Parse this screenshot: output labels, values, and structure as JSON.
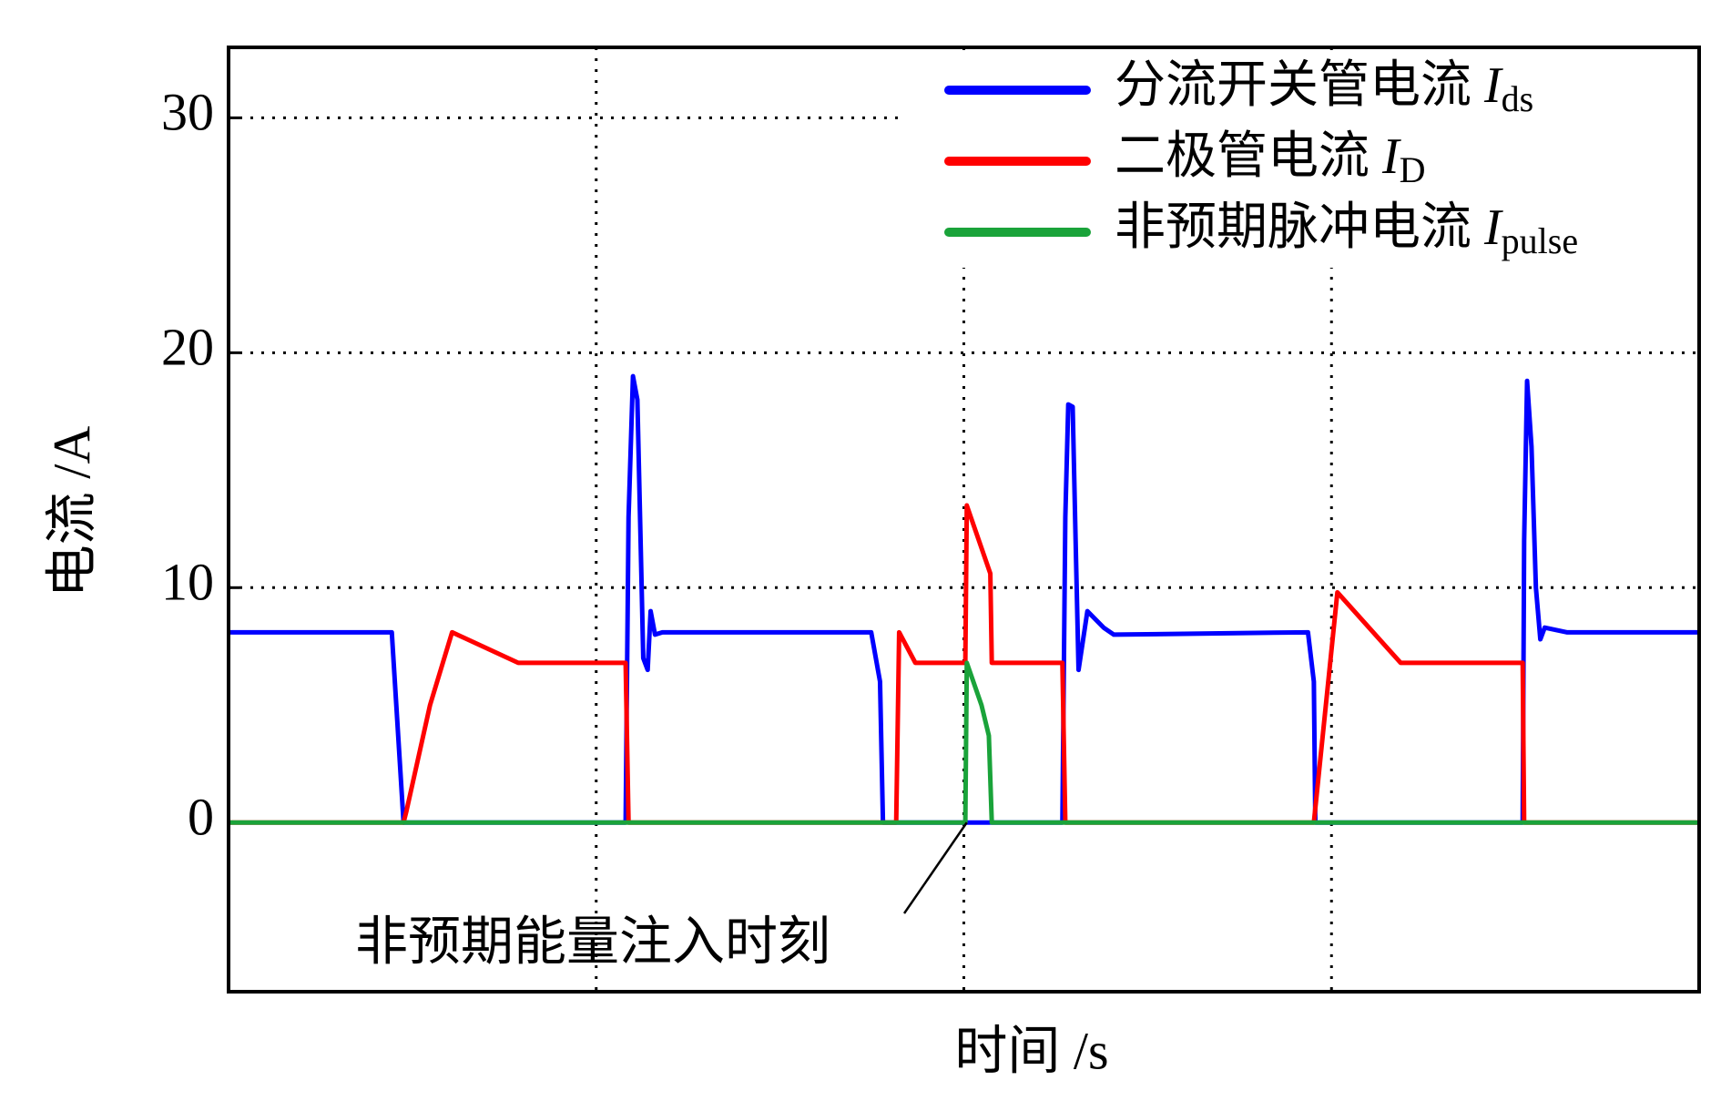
{
  "chart_data": {
    "type": "line",
    "x_label": "时间 /s",
    "y_label": "电流 /A",
    "xlim": [
      0,
      100
    ],
    "ylim": [
      -7.2,
      33
    ],
    "yticks": [
      0,
      10,
      20,
      30
    ],
    "grid": true,
    "legend": "upper right",
    "series": [
      {
        "name": "分流开关管电流",
        "symbol": "I",
        "subscript": "ds",
        "color": "#0000ff",
        "x": [
          0,
          11.1,
          11.9,
          27.0,
          27.2,
          27.5,
          27.8,
          28.2,
          28.5,
          28.7,
          29.0,
          29.5,
          43.7,
          44.3,
          44.5,
          56.7,
          56.9,
          57.1,
          57.4,
          57.6,
          57.8,
          58.4,
          59.5,
          60.2,
          73.4,
          73.8,
          73.9,
          88.0,
          88.1,
          88.3,
          88.6,
          88.9,
          89.2,
          89.5,
          91.0,
          100
        ],
        "values": [
          8.1,
          8.1,
          0,
          0,
          13,
          19,
          18,
          7,
          6.5,
          9,
          8,
          8.1,
          8.1,
          6,
          0,
          0,
          13,
          17.8,
          17.7,
          12,
          6.5,
          9,
          8.3,
          8,
          8.1,
          6,
          0,
          0,
          12,
          18.8,
          16,
          10,
          7.8,
          8.3,
          8.1,
          8.1
        ]
      },
      {
        "name": "二极管电流",
        "symbol": "I",
        "subscript": "D",
        "color": "#ff0000",
        "x": [
          0,
          11.9,
          12.1,
          13.7,
          15.2,
          19.7,
          27.0,
          27.2,
          45.4,
          45.6,
          46.7,
          50.1,
          50.2,
          51.8,
          51.9,
          56.7,
          56.9,
          73.8,
          75.4,
          79.7,
          88.0,
          88.1,
          100
        ],
        "values": [
          0,
          0,
          0.5,
          5,
          8.1,
          6.8,
          6.8,
          0,
          0,
          8.1,
          6.8,
          6.8,
          13.5,
          10.6,
          6.8,
          6.8,
          0,
          0,
          9.8,
          6.8,
          6.8,
          0,
          0
        ]
      },
      {
        "name": "非预期脉冲电流",
        "symbol": "I",
        "subscript": "pulse",
        "color": "#1aa33a",
        "x": [
          0,
          50.1,
          50.2,
          51.2,
          51.7,
          51.9,
          100
        ],
        "values": [
          0,
          0,
          6.8,
          5,
          3.7,
          0,
          0
        ]
      }
    ],
    "annotation": {
      "text": "非预期能量注入时刻",
      "x": 50.2,
      "y": 0
    }
  }
}
